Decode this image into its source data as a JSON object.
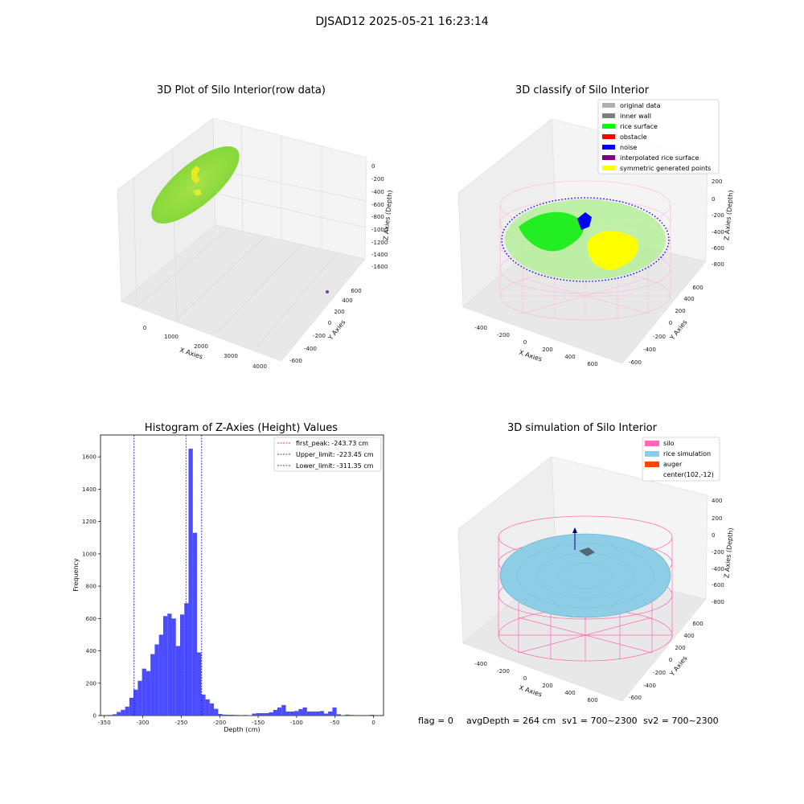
{
  "figure": {
    "suptitle": "DJSAD12 2025-05-21 16:23:14"
  },
  "status": {
    "flag": "flag = 0",
    "avg_depth": "avgDepth = 264 cm",
    "sv1": "sv1 = 700~2300",
    "sv2": "sv2 = 700~2300"
  },
  "chart_data": [
    {
      "type": "scatter",
      "title": "3D Plot of Silo Interior(row data)",
      "xlabel": "X Axies",
      "ylabel": "Y Axies",
      "zlabel": "Z Axies (Depth)",
      "x_ticks": [
        "0",
        "1000",
        "2000",
        "3000",
        "4000"
      ],
      "y_ticks": [
        "-600",
        "-400",
        "-200",
        "0",
        "200",
        "400",
        "600"
      ],
      "z_ticks": [
        "0",
        "-200",
        "-400",
        "-600",
        "-800",
        "-1000",
        "-1200",
        "-1400",
        "-1600"
      ],
      "colors": {
        "points": "#8fdc3a",
        "highlight": "#ffee00",
        "outlier": "#7a3fa0"
      }
    },
    {
      "type": "scatter",
      "title": "3D classify of Silo Interior",
      "xlabel": "X Axies",
      "ylabel": "Y Axies",
      "zlabel": "Z Axies (Depth)",
      "x_ticks": [
        "-400",
        "-200",
        "0",
        "200",
        "400",
        "600"
      ],
      "y_ticks": [
        "-600",
        "-400",
        "-200",
        "0",
        "200",
        "400",
        "600"
      ],
      "z_ticks": [
        "200",
        "0",
        "-200",
        "-400",
        "-600",
        "-800"
      ],
      "legend": [
        {
          "label": "original data",
          "color": "#b0b0b0"
        },
        {
          "label": "inner wall",
          "color": "#808080"
        },
        {
          "label": "rice surface",
          "color": "#00ff00"
        },
        {
          "label": "obstacle",
          "color": "#ff0000"
        },
        {
          "label": "noise",
          "color": "#0000ff"
        },
        {
          "label": "interpolated rice surface",
          "color": "#800080"
        },
        {
          "label": "symmetric generated points",
          "color": "#ffff00"
        }
      ],
      "legend_position": "top-right"
    },
    {
      "type": "bar",
      "title": "Histogram of Z-Axies (Height) Values",
      "xlabel": "Depth (cm)",
      "ylabel": "Frequency",
      "xlim": [
        -355,
        13
      ],
      "ylim": [
        0,
        1735
      ],
      "x_ticks": [
        -350,
        -300,
        -250,
        -200,
        -150,
        -100,
        -50,
        0
      ],
      "y_ticks": [
        0,
        200,
        400,
        600,
        800,
        1000,
        1200,
        1400,
        1600
      ],
      "bin_width": 5.5,
      "bins": [
        [
          -345,
          4
        ],
        [
          -339.5,
          8
        ],
        [
          -334,
          22
        ],
        [
          -328.5,
          35
        ],
        [
          -323,
          55
        ],
        [
          -317.5,
          110
        ],
        [
          -312,
          160
        ],
        [
          -306.5,
          215
        ],
        [
          -301,
          290
        ],
        [
          -295.5,
          275
        ],
        [
          -290,
          380
        ],
        [
          -284.5,
          440
        ],
        [
          -279,
          500
        ],
        [
          -273.5,
          615
        ],
        [
          -268,
          630
        ],
        [
          -262.5,
          600
        ],
        [
          -257,
          430
        ],
        [
          -251.5,
          625
        ],
        [
          -246,
          695
        ],
        [
          -240.5,
          1650
        ],
        [
          -235,
          1130
        ],
        [
          -229.5,
          390
        ],
        [
          -224,
          130
        ],
        [
          -218.5,
          100
        ],
        [
          -213,
          75
        ],
        [
          -207.5,
          42
        ],
        [
          -202,
          10
        ],
        [
          -196.5,
          6
        ],
        [
          -191,
          5
        ],
        [
          -185.5,
          5
        ],
        [
          -180,
          4
        ],
        [
          -174.5,
          3
        ],
        [
          -169,
          4
        ],
        [
          -163.5,
          2
        ],
        [
          -158,
          12
        ],
        [
          -152.5,
          15
        ],
        [
          -147,
          15
        ],
        [
          -141.5,
          15
        ],
        [
          -136,
          20
        ],
        [
          -130.5,
          35
        ],
        [
          -125,
          50
        ],
        [
          -119.5,
          65
        ],
        [
          -114,
          25
        ],
        [
          -108.5,
          25
        ],
        [
          -103,
          28
        ],
        [
          -97.5,
          40
        ],
        [
          -92,
          50
        ],
        [
          -86.5,
          25
        ],
        [
          -81,
          25
        ],
        [
          -75.5,
          25
        ],
        [
          -70,
          28
        ],
        [
          -64.5,
          12
        ],
        [
          -59,
          25
        ],
        [
          -53.5,
          50
        ],
        [
          -48,
          8
        ],
        [
          -42.5,
          2
        ],
        [
          -37,
          6
        ],
        [
          -31.5,
          4
        ],
        [
          -21,
          3
        ],
        [
          -5,
          5
        ]
      ],
      "lines": [
        {
          "label": "first_peak: -243.73 cm",
          "x": -243.73,
          "color": "#ff0000"
        },
        {
          "label": "Upper_limit: -223.45 cm",
          "x": -223.45,
          "color": "#0000cc"
        },
        {
          "label": "Lower_limit: -311.35 cm",
          "x": -311.35,
          "color": "#0000cc"
        }
      ],
      "bar_color": "#4b4bff",
      "legend_position": "top-right"
    },
    {
      "type": "scatter",
      "title": "3D simulation of Silo Interior",
      "xlabel": "X Axies",
      "ylabel": "Y Axies",
      "zlabel": "Z Axies (Depth)",
      "x_ticks": [
        "-400",
        "-200",
        "0",
        "200",
        "400",
        "600"
      ],
      "y_ticks": [
        "-600",
        "-400",
        "-200",
        "0",
        "200",
        "400",
        "600"
      ],
      "z_ticks": [
        "400",
        "200",
        "0",
        "-200",
        "-400",
        "-600",
        "-800"
      ],
      "legend": [
        {
          "label": "silo",
          "color": "#ff69b4"
        },
        {
          "label": "rice simulation",
          "color": "#87ceeb"
        },
        {
          "label": "auger",
          "color": "#ff4500"
        },
        {
          "label": "center(102,-12)",
          "color": ""
        }
      ],
      "legend_position": "top-right"
    }
  ]
}
